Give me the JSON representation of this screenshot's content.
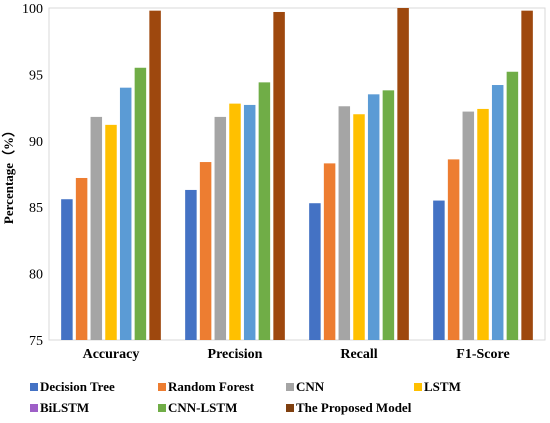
{
  "chart_data": {
    "type": "bar",
    "ylabel": "Percentage（%）",
    "ylim": [
      75,
      100
    ],
    "yticks": [
      "75",
      "80",
      "85",
      "90",
      "95",
      "100"
    ],
    "categories": [
      "Accuracy",
      "Precision",
      "Recall",
      "F1-Score"
    ],
    "grid": false,
    "legend_position": "bottom",
    "series": [
      {
        "name": "Decision Tree",
        "color": "#4472C4",
        "values": [
          85.6,
          86.3,
          85.3,
          85.5
        ]
      },
      {
        "name": "Random Forest",
        "color": "#ED7D31",
        "values": [
          87.2,
          88.4,
          88.3,
          88.6
        ]
      },
      {
        "name": "CNN",
        "color": "#A5A5A5",
        "values": [
          91.8,
          91.8,
          92.6,
          92.2
        ]
      },
      {
        "name": "LSTM",
        "color": "#FFC000",
        "values": [
          91.2,
          92.8,
          92.0,
          92.4
        ]
      },
      {
        "name": "BiLSTM",
        "color": "#5B9BD5",
        "values": [
          94.0,
          92.7,
          93.5,
          94.2
        ]
      },
      {
        "name": "CNN-LSTM",
        "color": "#70AD47",
        "values": [
          95.5,
          94.4,
          93.8,
          95.2
        ]
      },
      {
        "name": "The Proposed Model",
        "color": "#9E480E",
        "values": [
          99.8,
          99.7,
          100.0,
          99.8
        ]
      }
    ],
    "legend_swatch_colors": [
      "#4472C4",
      "#ED7D31",
      "#A5A5A5",
      "#FFC000",
      "#9E5FC7",
      "#70AD47",
      "#7F3F0F"
    ]
  }
}
